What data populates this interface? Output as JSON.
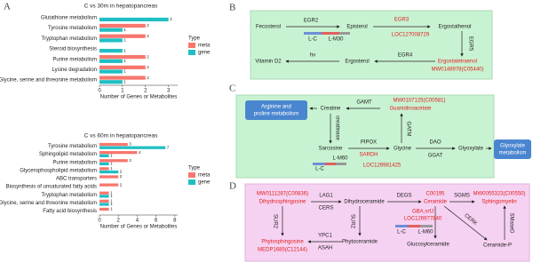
{
  "panel_a_label": "A",
  "chart_data": [
    {
      "type": "bar",
      "orientation": "horizontal",
      "title": "C vs 30m in hepatopancreas",
      "categories": [
        "Glutathione metabolism",
        "Tyrosine metabolism",
        "Tryptophan metabolism",
        "Steroid biosynthesis",
        "Purine metabolism",
        "Lysine degradation",
        "Glycine, serine and threonine metabolism"
      ],
      "category_colors": [
        "#222222",
        "#3a9a3a",
        "#2a2aa8",
        "#222222",
        "#a09a00",
        "#222222",
        "#cc2222"
      ],
      "series": [
        {
          "name": "meta",
          "color": "#f8766d",
          "values": [
            null,
            2,
            2,
            null,
            2,
            2,
            2
          ]
        },
        {
          "name": "gene",
          "color": "#1fbfc3",
          "values": [
            3,
            1,
            1,
            1,
            1,
            1,
            1
          ]
        }
      ],
      "xlabel": "Number of Genes or Metabolites",
      "xlim": [
        0,
        3.4
      ],
      "xticks": [
        0,
        1,
        2,
        3
      ],
      "legend_title": "Type",
      "legend": "right"
    },
    {
      "type": "bar",
      "orientation": "horizontal",
      "title": "C vs 60m in hepatopancreas",
      "categories": [
        "Tyrosine metabolism",
        "Sphingolipid metabolism",
        "Purine metabolism",
        "Glycerophospholipid metabolism",
        "ABC transporters",
        "Biosynthesis of unsaturated fatty acids",
        "Tryptophan metabolism",
        "Glycine, serine and threonine metabolism",
        "Fatty acid biosynthesis"
      ],
      "category_colors": [
        "#3a9a3a",
        "#222222",
        "#a09a00",
        "#222222",
        "#222222",
        "#222222",
        "#2a2aa8",
        "#cc2222",
        "#222222"
      ],
      "series": [
        {
          "name": "meta",
          "color": "#f8766d",
          "values": [
            3,
            4,
            3,
            1,
            2,
            2,
            1,
            1,
            1
          ]
        },
        {
          "name": "gene",
          "color": "#1fbfc3",
          "values": [
            7,
            1,
            1,
            2,
            null,
            null,
            1,
            1,
            null
          ]
        }
      ],
      "xlabel": "Number of Genes or Metabolites",
      "xlim": [
        0,
        8.3
      ],
      "xticks": [
        0,
        2,
        4,
        6,
        8
      ],
      "legend_title": "Type",
      "legend": "right"
    }
  ],
  "panel_b": {
    "label": "B",
    "fecosterol": "Fecosterol",
    "egr2": "EGR2",
    "episterol": "Episterol",
    "egr3": "EGR3",
    "ergostathenol": "Ergostathenol",
    "loc": "LOC127008729",
    "egr5": "EGR5",
    "ergostatetraenol": "Ergostatetraenol",
    "mw": "MW0148978(C05440)",
    "egr4": "EGR4",
    "ergosterol": "Ergosterol",
    "hv": "hv",
    "vitamin_d2": "Vitamin D2",
    "lc": "L-C",
    "lm": "L-M30"
  },
  "panel_c": {
    "label": "C",
    "arginine_1": "Arginine and",
    "arginine_2": "proline metabolism",
    "creatine": "Creatine",
    "gamt": "GAMT",
    "mw": "MW0107125(C00581)",
    "guanidinoacetate": "Guanidinoacetate",
    "creatinase": "creatinase",
    "gatm": "GATM",
    "sarcosine": "Sarcosine",
    "pipox": "PIPOX",
    "sardh": "SARDH",
    "glycine": "Glycine",
    "loc": "LOC126981425",
    "dao": "DAO",
    "ggat": "GGAT",
    "glyoxylate": "Glyoxylate",
    "glyoxylate_met_1": "Glyoxylate",
    "glyoxylate_met_2": "metabolism",
    "lc": "L-C",
    "lm": "L-M60"
  },
  "panel_d": {
    "label": "D",
    "mw1": "MW0111287(C00836)",
    "dihydrosphingosine": "Dihydrosphingosine",
    "lag1": "LAG1",
    "cers": "CERS",
    "dihydroceramide": "Dihydroceramide",
    "degs": "DEGS",
    "c00195": "C00195",
    "ceramide": "Ceramide",
    "sgms": "SGMS",
    "mw2": "MW0055323(C00550)",
    "sphingomyelin": "Sphingomyelin",
    "sur2_a": "SUR2",
    "sur2_b": "SUR2",
    "gba": "GBA,srfJ",
    "loc": "LOC126977840",
    "cerk": "CERK",
    "smased": "SMaseD",
    "phytosphingosine": "Phytosphingosine",
    "medp": "MEDP1685(C12144)",
    "ypc1": "YPC1",
    "asah": "ASAH",
    "phytoceramide": "Phytoceramide",
    "glucosylceramide": "Glucosylceramide",
    "ceramide_p": "Ceramide-P",
    "lc": "L-C",
    "lm": "L-M60"
  }
}
